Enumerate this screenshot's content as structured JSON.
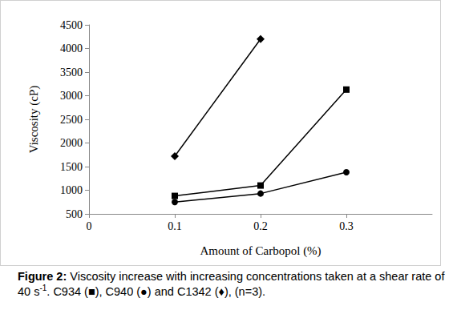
{
  "chart_data": {
    "type": "line",
    "x_label": "Amount of Carbopol (%)",
    "y_label": "Viscosity (cP)",
    "x": [
      0.1,
      0.2,
      0.3
    ],
    "series": [
      {
        "name": "C934",
        "color": "#000000",
        "marker": "square",
        "values": [
          880,
          1100,
          3130
        ]
      },
      {
        "name": "C940",
        "color": "#000000",
        "marker": "circle",
        "values": [
          750,
          930,
          1380
        ]
      },
      {
        "name": "C1342",
        "color": "#000000",
        "marker": "diamond",
        "values": [
          1720,
          4200,
          null
        ]
      }
    ],
    "xlim": [
      0,
      0.4
    ],
    "xticks": [
      0,
      0.1,
      0.2,
      0.3
    ],
    "ylim": [
      500,
      4500
    ],
    "yticks": [
      500,
      1000,
      1500,
      2000,
      2500,
      3000,
      3500,
      4000,
      4500
    ],
    "grid": false,
    "caption": {
      "label": "Figure 2:",
      "parts": [
        " Viscosity increase with increasing concentrations taken at a shear rate of 40 s",
        "-1",
        ". C934 (■), C940 (●) and C1342 (♦), (n=3)."
      ]
    }
  }
}
